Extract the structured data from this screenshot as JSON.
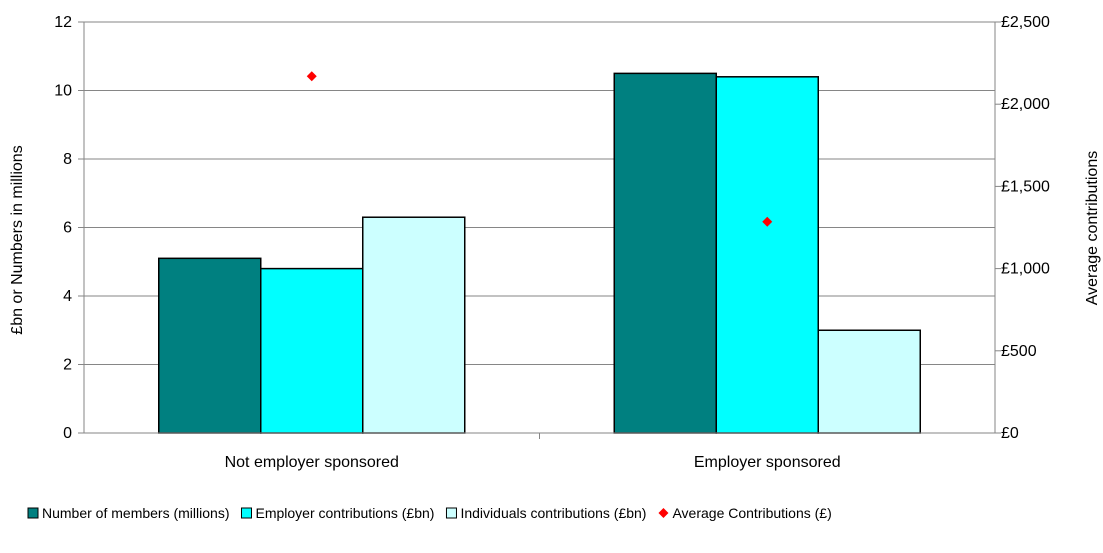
{
  "chart_data": {
    "type": "bar",
    "categories": [
      "Not employer sponsored",
      "Employer sponsored"
    ],
    "series": [
      {
        "name": "Number of members (millions)",
        "axis": "left",
        "values": [
          5.1,
          10.5
        ],
        "color": "#008080"
      },
      {
        "name": "Employer contributions (£bn)",
        "axis": "left",
        "values": [
          4.8,
          10.4
        ],
        "color": "#00FFFF"
      },
      {
        "name": "Individuals contributions (£bn)",
        "axis": "left",
        "values": [
          6.3,
          3.0
        ],
        "color": "#CCFFFF"
      },
      {
        "name": "Average Contributions (£)",
        "axis": "right",
        "type": "scatter",
        "values": [
          2170,
          1285
        ],
        "color": "#FF0000"
      }
    ],
    "ylabel": "£bn or Numbers in millions",
    "y2label": "Average contributions",
    "ylim": [
      0,
      12
    ],
    "y2lim": [
      0,
      2500
    ],
    "yticks": [
      "0",
      "2",
      "4",
      "6",
      "8",
      "10",
      "12"
    ],
    "y2ticks": [
      "£0",
      "£500",
      "£1,000",
      "£1,500",
      "£2,000",
      "£2,500"
    ],
    "grid": true,
    "legend_position": "bottom"
  }
}
